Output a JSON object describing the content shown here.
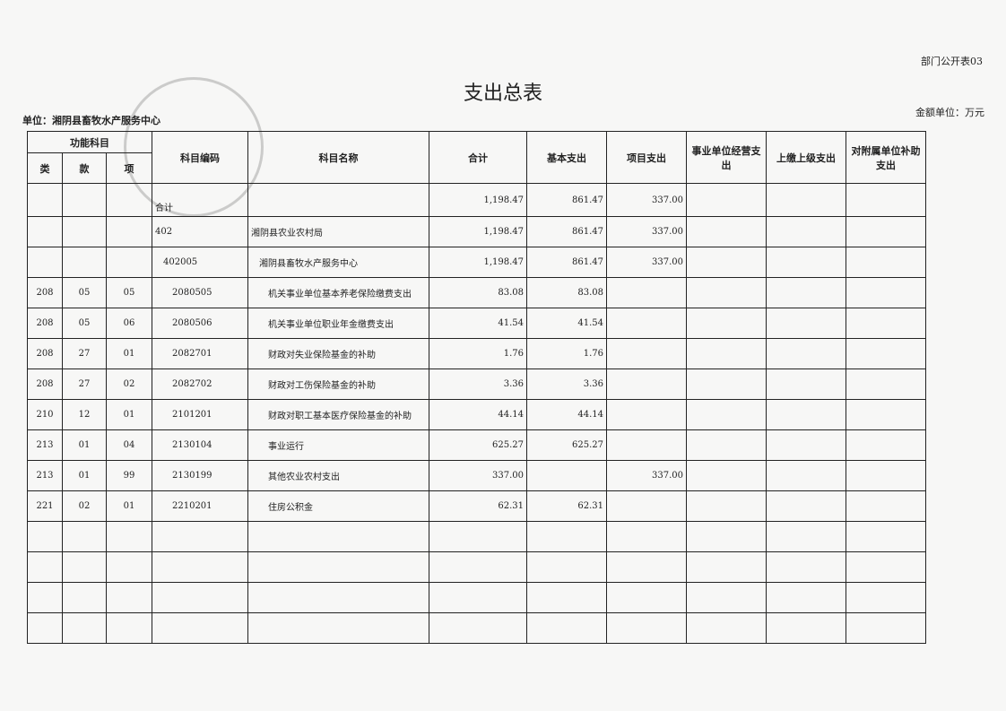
{
  "form_no": "部门公开表03",
  "title": "支出总表",
  "unit_label": "金额单位：万元",
  "org_label": "单位：湘阴县畜牧水产服务中心",
  "headers": {
    "func": "功能科目",
    "lei": "类",
    "kuan": "款",
    "xiang": "项",
    "code": "科目编码",
    "name": "科目名称",
    "total": "合计",
    "basic": "基本支出",
    "project": "项目支出",
    "business": "事业单位经营支出",
    "upper": "上缴上级支出",
    "subsidy": "对附属单位补助支出"
  },
  "rows": [
    {
      "lei": "",
      "kuan": "",
      "xiang": "",
      "code": "合计",
      "name": "",
      "total": "1,198.47",
      "basic": "861.47",
      "project": "337.00"
    },
    {
      "lei": "",
      "kuan": "",
      "xiang": "",
      "code": "402",
      "name": "湘阴县农业农村局",
      "total": "1,198.47",
      "basic": "861.47",
      "project": "337.00"
    },
    {
      "lei": "",
      "kuan": "",
      "xiang": "",
      "code": "402005",
      "name": "湘阴县畜牧水产服务中心",
      "total": "1,198.47",
      "basic": "861.47",
      "project": "337.00"
    },
    {
      "lei": "208",
      "kuan": "05",
      "xiang": "05",
      "code": "2080505",
      "name": "机关事业单位基本养老保险缴费支出",
      "total": "83.08",
      "basic": "83.08",
      "project": ""
    },
    {
      "lei": "208",
      "kuan": "05",
      "xiang": "06",
      "code": "2080506",
      "name": "机关事业单位职业年金缴费支出",
      "total": "41.54",
      "basic": "41.54",
      "project": ""
    },
    {
      "lei": "208",
      "kuan": "27",
      "xiang": "01",
      "code": "2082701",
      "name": "财政对失业保险基金的补助",
      "total": "1.76",
      "basic": "1.76",
      "project": ""
    },
    {
      "lei": "208",
      "kuan": "27",
      "xiang": "02",
      "code": "2082702",
      "name": "财政对工伤保险基金的补助",
      "total": "3.36",
      "basic": "3.36",
      "project": ""
    },
    {
      "lei": "210",
      "kuan": "12",
      "xiang": "01",
      "code": "2101201",
      "name": "财政对职工基本医疗保险基金的补助",
      "total": "44.14",
      "basic": "44.14",
      "project": ""
    },
    {
      "lei": "213",
      "kuan": "01",
      "xiang": "04",
      "code": "2130104",
      "name": "事业运行",
      "total": "625.27",
      "basic": "625.27",
      "project": ""
    },
    {
      "lei": "213",
      "kuan": "01",
      "xiang": "99",
      "code": "2130199",
      "name": "其他农业农村支出",
      "total": "337.00",
      "basic": "",
      "project": "337.00"
    },
    {
      "lei": "221",
      "kuan": "02",
      "xiang": "01",
      "code": "2210201",
      "name": "住房公积金",
      "total": "62.31",
      "basic": "62.31",
      "project": ""
    }
  ],
  "stamp_text": "湘阴县畜牧水产服务中心"
}
